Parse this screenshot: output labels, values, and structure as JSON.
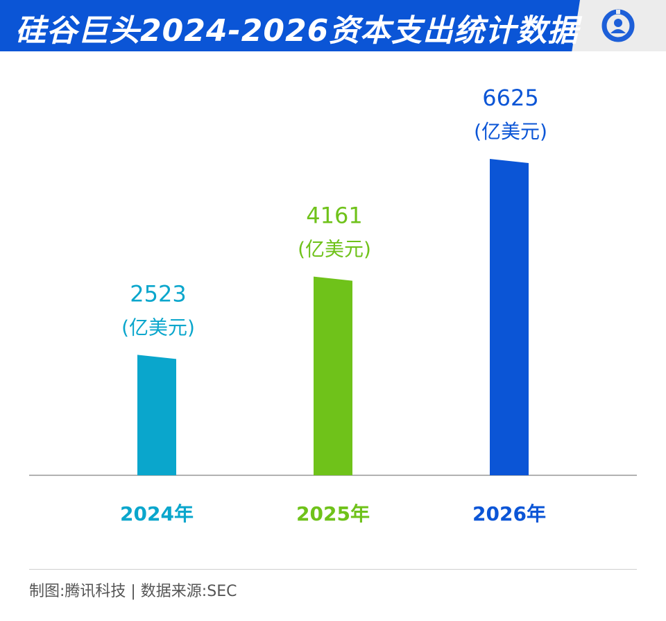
{
  "title": "硅谷巨头2024-2026资本支出统计数据",
  "footer": "制图:腾讯科技 | 数据来源:SEC",
  "logo": "tencent-news-logo",
  "chart_data": {
    "type": "bar",
    "categories": [
      "2024年",
      "2025年",
      "2026年"
    ],
    "values": [
      2523,
      4161,
      6625
    ],
    "unit_label": "(亿美元)",
    "colors": [
      "#0aa6cc",
      "#6fc21a",
      "#0b55d6"
    ],
    "grid": false,
    "legend": "none",
    "ylim": [
      0,
      6625
    ]
  }
}
